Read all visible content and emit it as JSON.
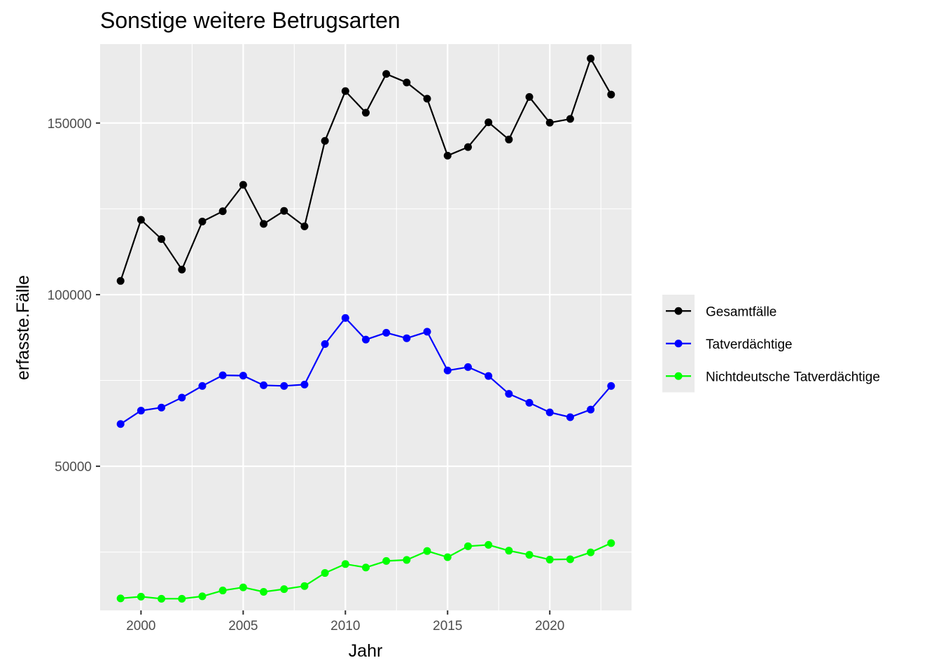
{
  "chart_data": {
    "type": "line",
    "title": "Sonstige weitere Betrugsarten",
    "xlabel": "Jahr",
    "ylabel": "erfasste.Fälle",
    "xlim": [
      1998,
      2024
    ],
    "ylim": [
      8000,
      173000
    ],
    "x_ticks": [
      2000,
      2005,
      2010,
      2015,
      2020
    ],
    "y_ticks": [
      50000,
      100000,
      150000
    ],
    "x_tick_labels": [
      "2000",
      "2005",
      "2010",
      "2015",
      "2020"
    ],
    "y_tick_labels": [
      "50000",
      "100000",
      "150000"
    ],
    "grid": true,
    "legend_position": "right",
    "x": [
      1999,
      2000,
      2001,
      2002,
      2003,
      2004,
      2005,
      2006,
      2007,
      2008,
      2009,
      2010,
      2011,
      2012,
      2013,
      2014,
      2015,
      2016,
      2017,
      2018,
      2019,
      2020,
      2021,
      2022,
      2023
    ],
    "series": [
      {
        "name": "Gesamtfälle",
        "color": "#000000",
        "values": [
          104000,
          121800,
          116200,
          107300,
          121300,
          124300,
          132000,
          120600,
          124400,
          119900,
          144800,
          159300,
          153000,
          164300,
          161800,
          157100,
          140500,
          143000,
          150200,
          145200,
          157600,
          150100,
          151200,
          168800,
          158300
        ]
      },
      {
        "name": "Tatverdächtige",
        "color": "#0000ff",
        "values": [
          62300,
          66200,
          67100,
          70000,
          73400,
          76500,
          76400,
          73600,
          73400,
          73800,
          85600,
          93200,
          86900,
          88900,
          87300,
          89200,
          77900,
          78900,
          76300,
          71100,
          68500,
          65700,
          64300,
          66500,
          73400
        ]
      },
      {
        "name": "Nichtdeutsche Tatverdächtige",
        "color": "#00ff00",
        "values": [
          11500,
          12000,
          11400,
          11400,
          12100,
          13800,
          14700,
          13400,
          14200,
          15100,
          18900,
          21500,
          20500,
          22400,
          22700,
          25300,
          23500,
          26700,
          27100,
          25400,
          24200,
          22800,
          22900,
          24900,
          27600
        ]
      }
    ]
  }
}
